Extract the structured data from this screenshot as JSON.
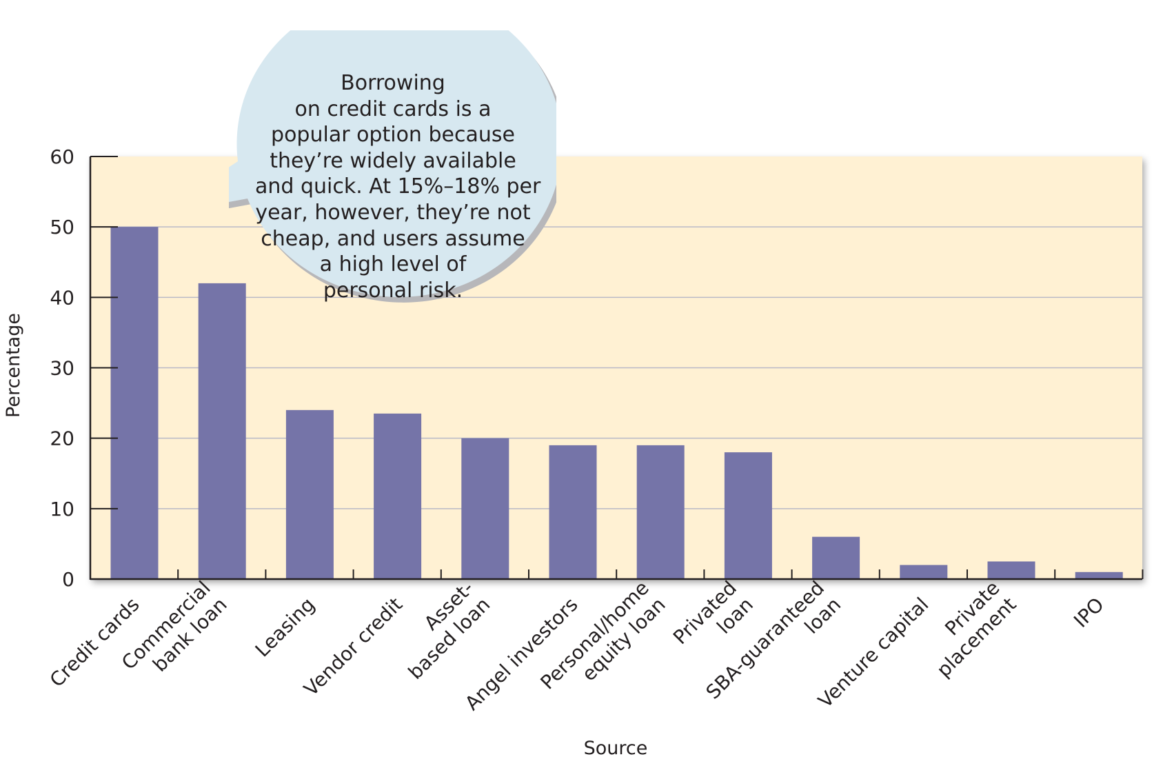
{
  "chart_data": {
    "type": "bar",
    "title": "",
    "xlabel": "Source",
    "ylabel": "Percentage",
    "ylim": [
      0,
      60
    ],
    "yticks": [
      0,
      10,
      20,
      30,
      40,
      50,
      60
    ],
    "grid": true,
    "categories": [
      [
        "Credit cards"
      ],
      [
        "Commercial",
        "bank loan"
      ],
      [
        "Leasing"
      ],
      [
        "Vendor credit"
      ],
      [
        "Asset-",
        "based loan"
      ],
      [
        "Angel investors"
      ],
      [
        "Personal/home",
        "equity loan"
      ],
      [
        "Privated",
        "loan"
      ],
      [
        "SBA-guaranteed",
        "loan"
      ],
      [
        "Venture capital"
      ],
      [
        "Private",
        "placement"
      ],
      [
        "IPO"
      ]
    ],
    "values": [
      50,
      42,
      24,
      23.5,
      20,
      19,
      19,
      18,
      6,
      2,
      2.5,
      1
    ],
    "annotations": [
      {
        "lines": [
          "Borrowing",
          "on credit cards is a",
          "popular option because",
          "they’re widely available",
          "and quick. At 15%–18% per",
          "year, however, they’re not",
          "cheap, and users assume",
          "a high level of",
          "personal risk."
        ]
      }
    ]
  },
  "colors": {
    "bar": "#7574a8",
    "plot_background": "#fff1d3",
    "gridline": "#b9b9c6",
    "axis": "#231f20",
    "callout_fill": "#d7e8f0",
    "callout_shadow": "#b7b7ba"
  }
}
